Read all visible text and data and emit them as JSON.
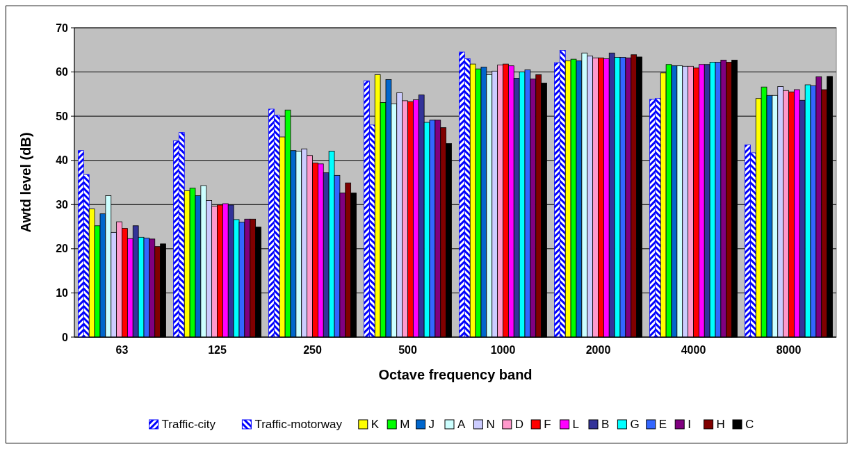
{
  "chart_data": {
    "type": "bar",
    "xlabel": "Octave frequency band",
    "ylabel": "Awtd level (dB)",
    "categories": [
      "63",
      "125",
      "250",
      "500",
      "1000",
      "2000",
      "4000",
      "8000"
    ],
    "ylim": [
      0,
      70
    ],
    "yticks": [
      0,
      10,
      20,
      30,
      40,
      50,
      60,
      70
    ],
    "grid": "y",
    "legend": "bottom",
    "series": [
      {
        "name": "Traffic-city",
        "color": "#0000ff",
        "values": [
          42.2,
          44.4,
          51.6,
          58,
          64.5,
          62.1,
          53.8,
          43.5
        ]
      },
      {
        "name": "Traffic-motorway",
        "color": "#0000ff",
        "values": [
          36.8,
          46.3,
          50.2,
          48,
          63,
          64.9,
          54,
          41.7
        ]
      },
      {
        "name": "K",
        "color": "#ffff00",
        "values": [
          29,
          33.1,
          45.3,
          59.4,
          61.8,
          62.5,
          59.8,
          54
        ]
      },
      {
        "name": "M",
        "color": "#00ff00",
        "values": [
          25.2,
          33.7,
          51.4,
          53.1,
          60.7,
          62.9,
          61.7,
          56.6
        ]
      },
      {
        "name": "J",
        "color": "#0066cc",
        "values": [
          27.9,
          32,
          42.2,
          58.3,
          61.1,
          62.5,
          61.4,
          54.7
        ]
      },
      {
        "name": "A",
        "color": "#ccffff",
        "values": [
          32,
          34.3,
          42.1,
          52.8,
          59.4,
          64.3,
          61.4,
          54.7
        ]
      },
      {
        "name": "N",
        "color": "#ccccff",
        "values": [
          23.7,
          30.9,
          42.6,
          55.3,
          60.2,
          63.6,
          61.3,
          56.7
        ]
      },
      {
        "name": "D",
        "color": "#ff99cc",
        "values": [
          26.1,
          29.6,
          41.1,
          53.5,
          61.6,
          63.2,
          61.3,
          55.8
        ]
      },
      {
        "name": "F",
        "color": "#ff0000",
        "values": [
          24.6,
          29.9,
          39.4,
          53.3,
          61.8,
          63.2,
          60.9,
          55.5
        ]
      },
      {
        "name": "L",
        "color": "#ff00ff",
        "values": [
          22.3,
          30.2,
          39.2,
          53.7,
          61.4,
          63,
          61.7,
          56
        ]
      },
      {
        "name": "B",
        "color": "#333399",
        "values": [
          25.2,
          29.9,
          37.2,
          54.8,
          58.6,
          64.3,
          61.7,
          53.6
        ]
      },
      {
        "name": "G",
        "color": "#00ffff",
        "values": [
          22.6,
          26.6,
          42.1,
          48.6,
          60,
          63.3,
          62.2,
          57.1
        ]
      },
      {
        "name": "E",
        "color": "#3366ff",
        "values": [
          22.4,
          26,
          36.6,
          49.1,
          60.5,
          63.3,
          62.2,
          56.9
        ]
      },
      {
        "name": "I",
        "color": "#800080",
        "values": [
          22.2,
          26.7,
          32.6,
          49.1,
          58.4,
          63.2,
          62.7,
          58.9
        ]
      },
      {
        "name": "H",
        "color": "#800000",
        "values": [
          20.5,
          26.7,
          34.9,
          47.4,
          59.4,
          63.9,
          62.2,
          56
        ]
      },
      {
        "name": "C",
        "color": "#000000",
        "values": [
          21.1,
          24.9,
          32.6,
          43.8,
          57.5,
          63.4,
          62.7,
          59
        ]
      }
    ]
  }
}
